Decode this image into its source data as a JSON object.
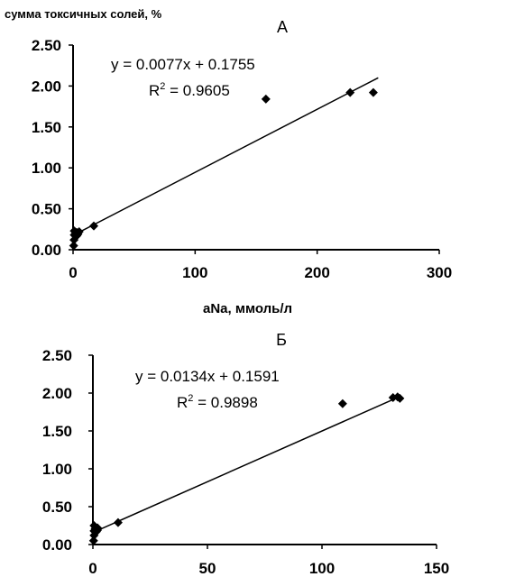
{
  "chart_data": [
    {
      "type": "scatter",
      "title": "А",
      "ylabel": "сумма токсичных солей, %",
      "xlabel": "aNa, ммоль/л",
      "xlim": [
        0,
        300
      ],
      "ylim": [
        0,
        2.5
      ],
      "x_ticks": [
        "0",
        "100",
        "200",
        "300"
      ],
      "y_ticks": [
        "0.00",
        "0.50",
        "1.00",
        "1.50",
        "2.00",
        "2.50"
      ],
      "grid": false,
      "points": [
        {
          "x": 0.5,
          "y": 0.05
        },
        {
          "x": 0.8,
          "y": 0.12
        },
        {
          "x": 1,
          "y": 0.18
        },
        {
          "x": 1,
          "y": 0.23
        },
        {
          "x": 2,
          "y": 0.2
        },
        {
          "x": 3,
          "y": 0.17
        },
        {
          "x": 3,
          "y": 0.21
        },
        {
          "x": 4,
          "y": 0.19
        },
        {
          "x": 5,
          "y": 0.22
        },
        {
          "x": 17,
          "y": 0.29
        },
        {
          "x": 158,
          "y": 1.84
        },
        {
          "x": 227,
          "y": 1.92
        },
        {
          "x": 246,
          "y": 1.92
        }
      ],
      "trendline": {
        "slope": 0.0077,
        "intercept": 0.1755,
        "x_range": [
          0,
          250
        ],
        "equation": "y = 0.0077x + 0.1755",
        "r2_prefix": "R",
        "r2_sup": "2",
        "r2_value": " = 0.9605"
      }
    },
    {
      "type": "scatter",
      "title": "Б",
      "xlim": [
        0,
        150
      ],
      "ylim": [
        0,
        2.5
      ],
      "x_ticks": [
        "0",
        "50",
        "100",
        "150"
      ],
      "y_ticks": [
        "0.00",
        "0.50",
        "1.00",
        "1.50",
        "2.00",
        "2.50"
      ],
      "grid": false,
      "points": [
        {
          "x": 0.3,
          "y": 0.05
        },
        {
          "x": 0.5,
          "y": 0.12
        },
        {
          "x": 0.5,
          "y": 0.18
        },
        {
          "x": 0.5,
          "y": 0.25
        },
        {
          "x": 1,
          "y": 0.21
        },
        {
          "x": 1.5,
          "y": 0.17
        },
        {
          "x": 2,
          "y": 0.22
        },
        {
          "x": 2,
          "y": 0.19
        },
        {
          "x": 11,
          "y": 0.29
        },
        {
          "x": 109,
          "y": 1.86
        },
        {
          "x": 131,
          "y": 1.94
        },
        {
          "x": 133,
          "y": 1.95
        },
        {
          "x": 134,
          "y": 1.93
        }
      ],
      "trendline": {
        "slope": 0.0134,
        "intercept": 0.1591,
        "x_range": [
          0,
          134
        ],
        "equation": "y = 0.0134x + 0.1591",
        "r2_prefix": "R",
        "r2_sup": "2",
        "r2_value": " = 0.9898"
      }
    }
  ]
}
